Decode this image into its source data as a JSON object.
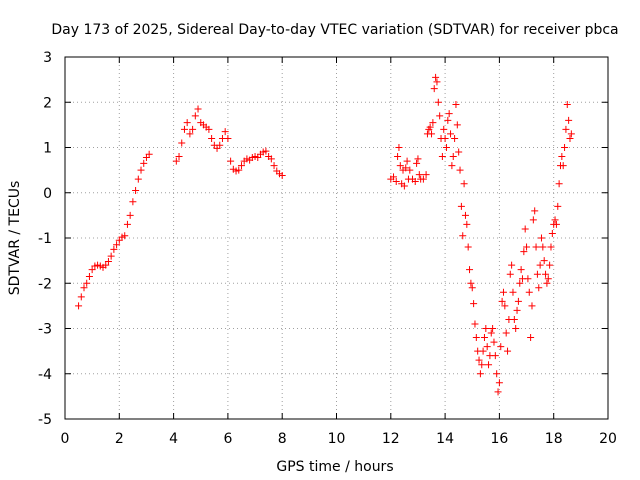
{
  "chart_data": {
    "type": "scatter",
    "title": "Day 173 of 2025, Sidereal Day-to-day VTEC variation (SDTVAR) for receiver pbca",
    "xlabel": "GPS time / hours",
    "ylabel": "SDTVAR / TECUs",
    "xlim": [
      0,
      20
    ],
    "ylim": [
      -5,
      3
    ],
    "xticks": [
      0,
      2,
      4,
      6,
      8,
      10,
      12,
      14,
      16,
      18,
      20
    ],
    "yticks": [
      -5,
      -4,
      -3,
      -2,
      -1,
      0,
      1,
      2,
      3
    ],
    "grid": true,
    "marker": "plus",
    "color": "#ff0000",
    "series": [
      {
        "name": "SDTVAR",
        "points": [
          [
            0.5,
            -2.5
          ],
          [
            0.6,
            -2.3
          ],
          [
            0.7,
            -2.1
          ],
          [
            0.8,
            -2.0
          ],
          [
            0.9,
            -1.85
          ],
          [
            1.0,
            -1.7
          ],
          [
            1.1,
            -1.62
          ],
          [
            1.2,
            -1.6
          ],
          [
            1.3,
            -1.62
          ],
          [
            1.4,
            -1.65
          ],
          [
            1.5,
            -1.6
          ],
          [
            1.6,
            -1.52
          ],
          [
            1.7,
            -1.4
          ],
          [
            1.8,
            -1.25
          ],
          [
            1.9,
            -1.15
          ],
          [
            2.0,
            -1.05
          ],
          [
            2.1,
            -0.98
          ],
          [
            2.2,
            -0.95
          ],
          [
            2.3,
            -0.7
          ],
          [
            2.4,
            -0.5
          ],
          [
            2.5,
            -0.2
          ],
          [
            2.6,
            0.05
          ],
          [
            2.7,
            0.3
          ],
          [
            2.8,
            0.5
          ],
          [
            2.9,
            0.65
          ],
          [
            3.0,
            0.78
          ],
          [
            3.1,
            0.85
          ],
          [
            4.1,
            0.7
          ],
          [
            4.2,
            0.8
          ],
          [
            4.3,
            1.1
          ],
          [
            4.4,
            1.4
          ],
          [
            4.5,
            1.55
          ],
          [
            4.6,
            1.3
          ],
          [
            4.7,
            1.4
          ],
          [
            4.8,
            1.7
          ],
          [
            4.9,
            1.85
          ],
          [
            5.0,
            1.55
          ],
          [
            5.1,
            1.5
          ],
          [
            5.2,
            1.45
          ],
          [
            5.3,
            1.4
          ],
          [
            5.4,
            1.2
          ],
          [
            5.5,
            1.05
          ],
          [
            5.6,
            0.98
          ],
          [
            5.7,
            1.05
          ],
          [
            5.8,
            1.2
          ],
          [
            5.9,
            1.35
          ],
          [
            6.0,
            1.2
          ],
          [
            6.1,
            0.7
          ],
          [
            6.2,
            0.52
          ],
          [
            6.3,
            0.48
          ],
          [
            6.4,
            0.5
          ],
          [
            6.5,
            0.6
          ],
          [
            6.6,
            0.7
          ],
          [
            6.7,
            0.75
          ],
          [
            6.8,
            0.72
          ],
          [
            6.9,
            0.78
          ],
          [
            7.0,
            0.8
          ],
          [
            7.1,
            0.78
          ],
          [
            7.2,
            0.85
          ],
          [
            7.3,
            0.9
          ],
          [
            7.4,
            0.92
          ],
          [
            7.5,
            0.8
          ],
          [
            7.6,
            0.75
          ],
          [
            7.7,
            0.6
          ],
          [
            7.8,
            0.48
          ],
          [
            7.9,
            0.42
          ],
          [
            8.0,
            0.38
          ],
          [
            12.0,
            0.3
          ],
          [
            12.1,
            0.35
          ],
          [
            12.2,
            0.25
          ],
          [
            12.25,
            0.8
          ],
          [
            12.3,
            1.0
          ],
          [
            12.35,
            0.6
          ],
          [
            12.4,
            0.2
          ],
          [
            12.45,
            0.5
          ],
          [
            12.5,
            0.15
          ],
          [
            12.55,
            0.55
          ],
          [
            12.6,
            0.7
          ],
          [
            12.65,
            0.3
          ],
          [
            12.7,
            0.5
          ],
          [
            12.8,
            0.3
          ],
          [
            12.9,
            0.25
          ],
          [
            12.95,
            0.65
          ],
          [
            13.0,
            0.75
          ],
          [
            13.05,
            0.4
          ],
          [
            13.1,
            0.3
          ],
          [
            13.2,
            0.3
          ],
          [
            13.3,
            0.4
          ],
          [
            13.35,
            1.3
          ],
          [
            13.4,
            1.4
          ],
          [
            13.45,
            1.45
          ],
          [
            13.5,
            1.3
          ],
          [
            13.55,
            1.55
          ],
          [
            13.6,
            2.3
          ],
          [
            13.65,
            2.55
          ],
          [
            13.7,
            2.45
          ],
          [
            13.75,
            2.0
          ],
          [
            13.8,
            1.7
          ],
          [
            13.85,
            1.2
          ],
          [
            13.9,
            0.8
          ],
          [
            13.95,
            1.4
          ],
          [
            14.0,
            1.2
          ],
          [
            14.05,
            1.0
          ],
          [
            14.1,
            1.6
          ],
          [
            14.15,
            1.75
          ],
          [
            14.2,
            1.3
          ],
          [
            14.25,
            0.6
          ],
          [
            14.3,
            0.8
          ],
          [
            14.35,
            1.2
          ],
          [
            14.4,
            1.95
          ],
          [
            14.45,
            1.5
          ],
          [
            14.5,
            0.9
          ],
          [
            14.55,
            0.5
          ],
          [
            14.6,
            -0.3
          ],
          [
            14.65,
            -0.95
          ],
          [
            14.7,
            0.2
          ],
          [
            14.75,
            -0.5
          ],
          [
            14.8,
            -0.7
          ],
          [
            14.85,
            -1.2
          ],
          [
            14.9,
            -1.7
          ],
          [
            14.95,
            -2.0
          ],
          [
            15.0,
            -2.1
          ],
          [
            15.05,
            -2.45
          ],
          [
            15.1,
            -2.9
          ],
          [
            15.15,
            -3.2
          ],
          [
            15.2,
            -3.5
          ],
          [
            15.25,
            -3.7
          ],
          [
            15.3,
            -4.0
          ],
          [
            15.35,
            -3.8
          ],
          [
            15.4,
            -3.5
          ],
          [
            15.45,
            -3.2
          ],
          [
            15.5,
            -3.0
          ],
          [
            15.55,
            -3.4
          ],
          [
            15.6,
            -3.8
          ],
          [
            15.65,
            -3.6
          ],
          [
            15.7,
            -3.1
          ],
          [
            15.75,
            -3.0
          ],
          [
            15.8,
            -3.3
          ],
          [
            15.85,
            -3.6
          ],
          [
            15.9,
            -4.0
          ],
          [
            15.95,
            -4.4
          ],
          [
            16.0,
            -4.2
          ],
          [
            16.05,
            -3.4
          ],
          [
            16.1,
            -2.4
          ],
          [
            16.15,
            -2.2
          ],
          [
            16.2,
            -2.5
          ],
          [
            16.25,
            -3.1
          ],
          [
            16.3,
            -3.5
          ],
          [
            16.35,
            -2.8
          ],
          [
            16.4,
            -1.8
          ],
          [
            16.45,
            -1.6
          ],
          [
            16.5,
            -2.2
          ],
          [
            16.55,
            -2.8
          ],
          [
            16.6,
            -3.0
          ],
          [
            16.65,
            -2.6
          ],
          [
            16.7,
            -2.4
          ],
          [
            16.75,
            -2.0
          ],
          [
            16.8,
            -1.7
          ],
          [
            16.85,
            -1.9
          ],
          [
            16.9,
            -1.3
          ],
          [
            16.95,
            -0.8
          ],
          [
            17.0,
            -1.2
          ],
          [
            17.05,
            -1.9
          ],
          [
            17.1,
            -2.2
          ],
          [
            17.15,
            -3.2
          ],
          [
            17.2,
            -2.5
          ],
          [
            17.25,
            -0.6
          ],
          [
            17.3,
            -0.4
          ],
          [
            17.35,
            -1.2
          ],
          [
            17.4,
            -1.8
          ],
          [
            17.45,
            -2.1
          ],
          [
            17.5,
            -1.6
          ],
          [
            17.55,
            -1.0
          ],
          [
            17.6,
            -1.2
          ],
          [
            17.65,
            -1.5
          ],
          [
            17.7,
            -1.8
          ],
          [
            17.75,
            -2.0
          ],
          [
            17.8,
            -1.9
          ],
          [
            17.85,
            -1.6
          ],
          [
            17.9,
            -1.2
          ],
          [
            17.95,
            -0.9
          ],
          [
            18.0,
            -0.7
          ],
          [
            18.05,
            -0.6
          ],
          [
            18.1,
            -0.7
          ],
          [
            18.15,
            -0.3
          ],
          [
            18.2,
            0.2
          ],
          [
            18.25,
            0.6
          ],
          [
            18.3,
            0.8
          ],
          [
            18.35,
            0.6
          ],
          [
            18.4,
            1.0
          ],
          [
            18.45,
            1.4
          ],
          [
            18.5,
            1.95
          ],
          [
            18.55,
            1.6
          ],
          [
            18.6,
            1.2
          ],
          [
            18.65,
            1.3
          ]
        ]
      }
    ]
  }
}
